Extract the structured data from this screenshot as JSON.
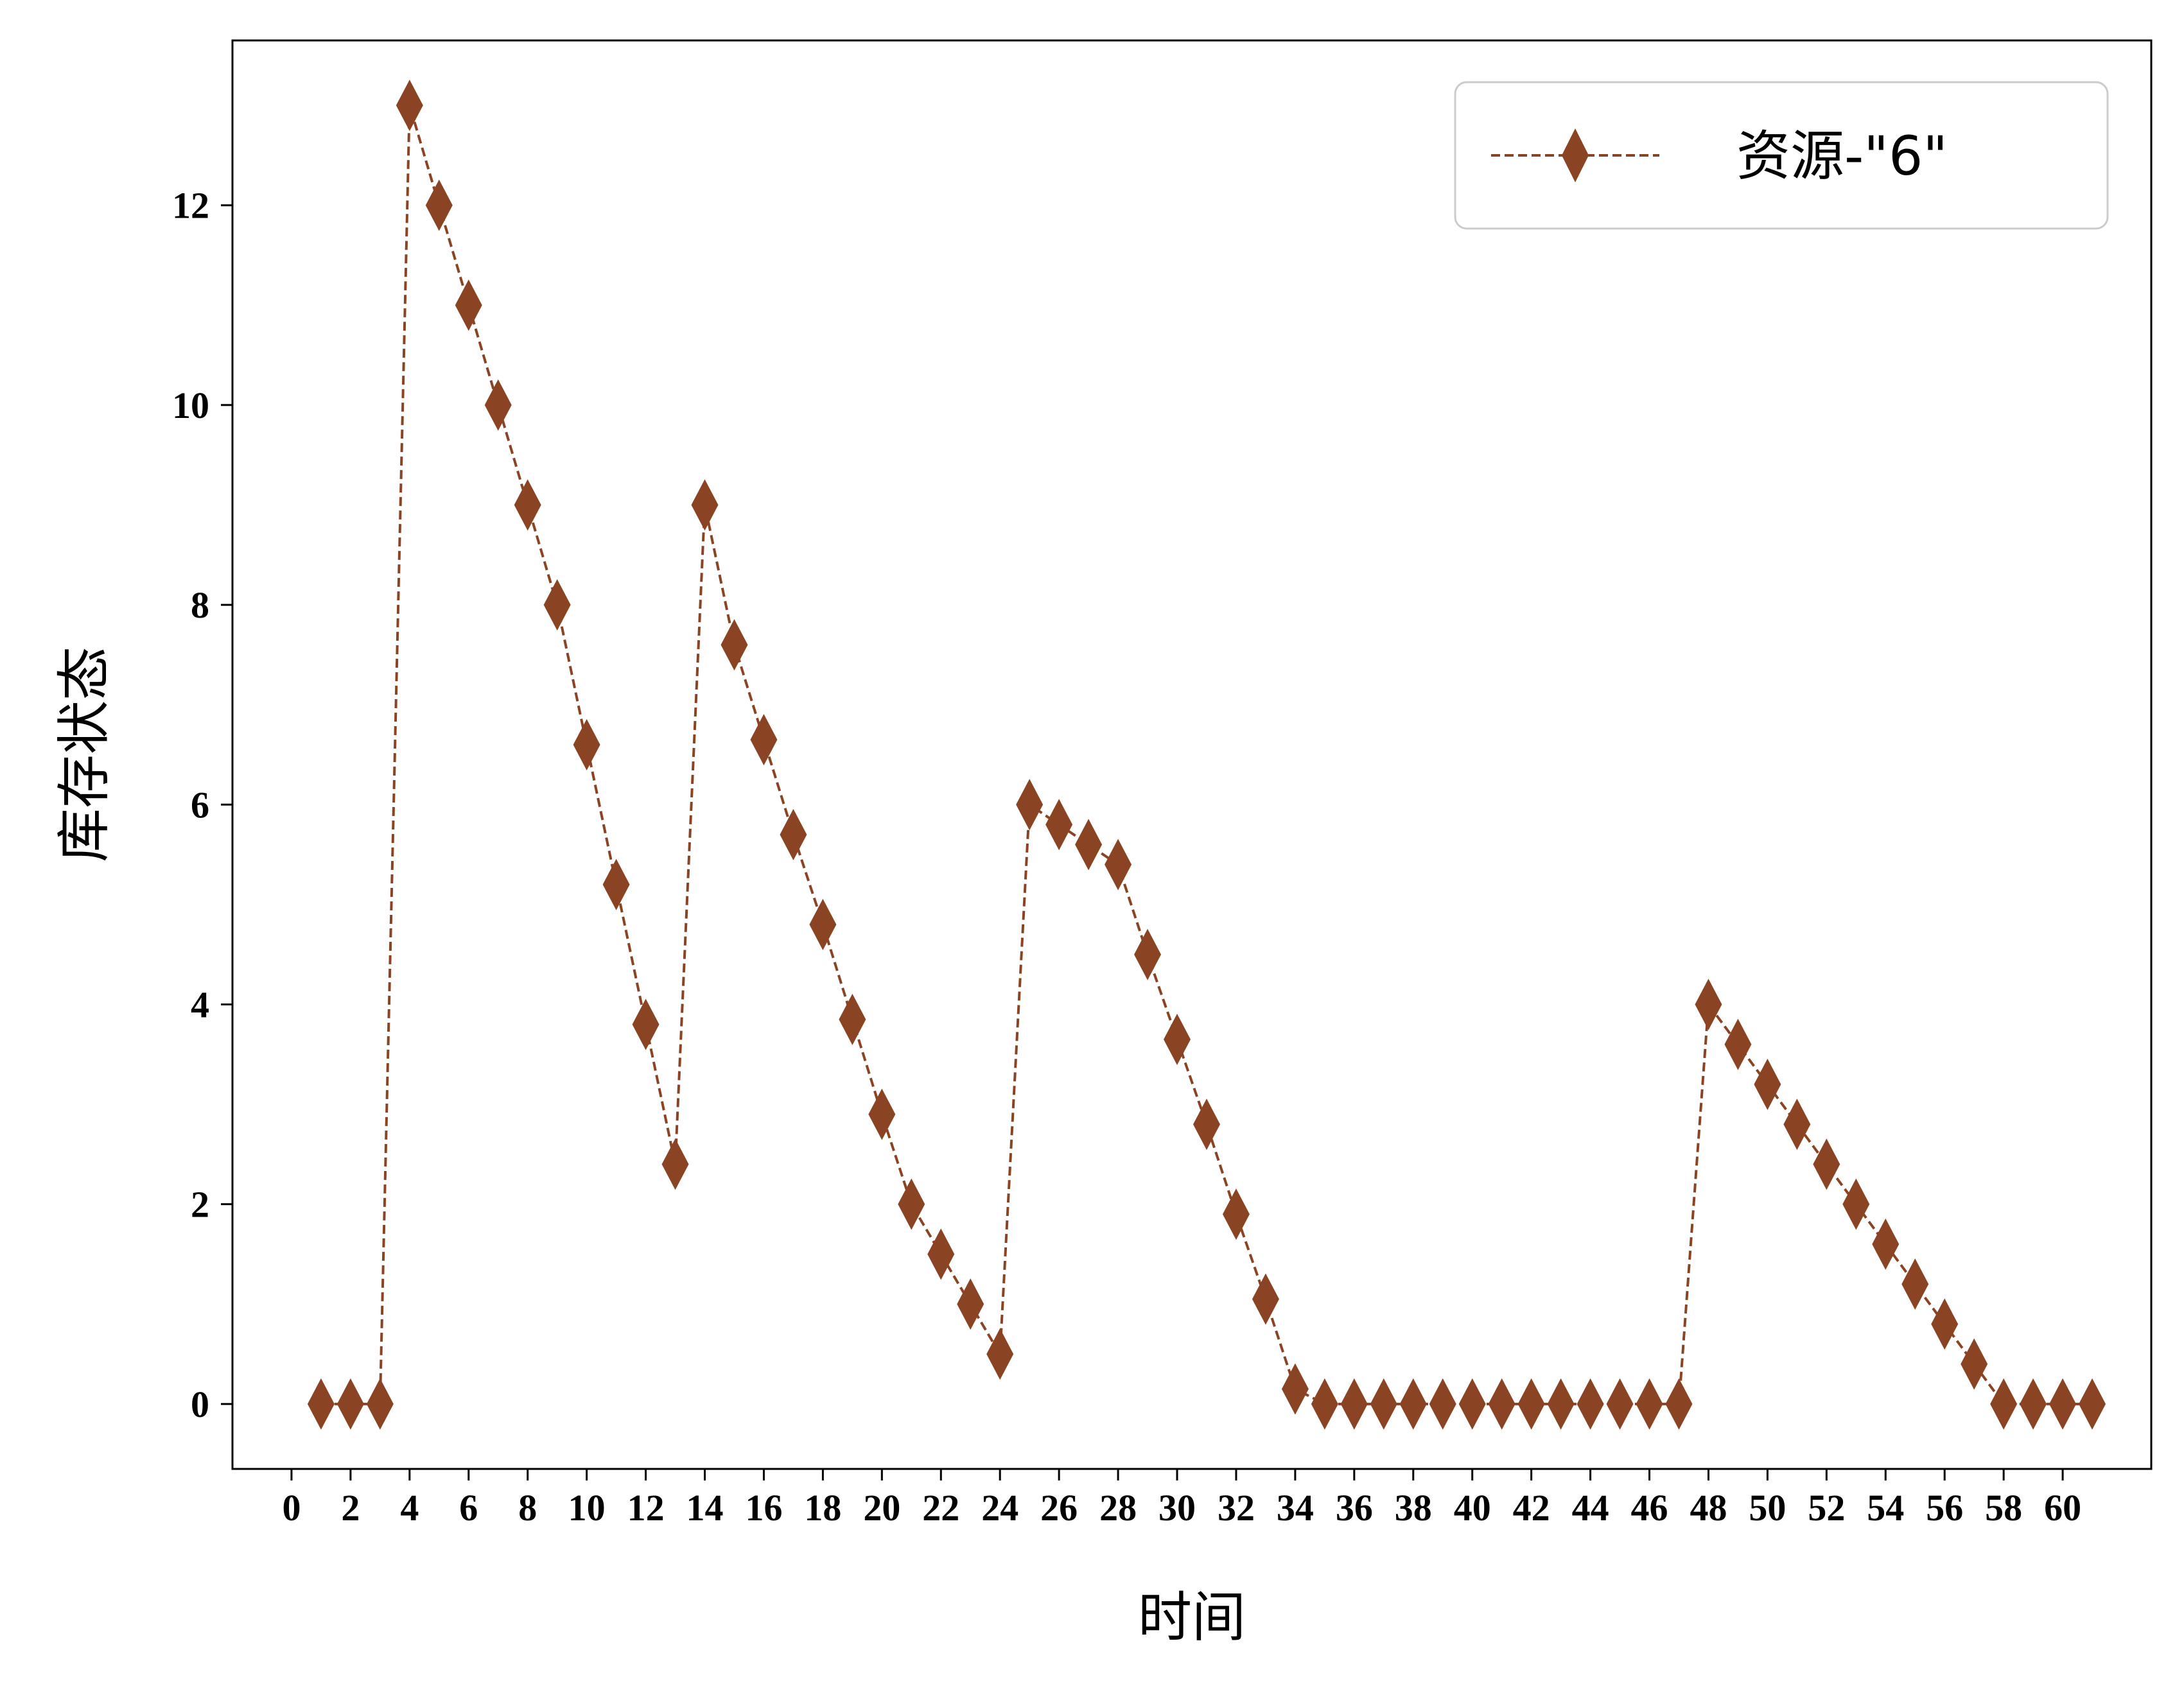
{
  "chart_data": {
    "type": "line",
    "title": "",
    "xlabel": "时间",
    "ylabel": "库存状态",
    "xlim": [
      -2,
      63
    ],
    "ylim": [
      -0.65,
      13.65
    ],
    "xticks": [
      0,
      2,
      4,
      6,
      8,
      10,
      12,
      14,
      16,
      18,
      20,
      22,
      24,
      26,
      28,
      30,
      32,
      34,
      36,
      38,
      40,
      42,
      44,
      46,
      48,
      50,
      52,
      54,
      56,
      58,
      60
    ],
    "yticks": [
      0,
      2,
      4,
      6,
      8,
      10,
      12
    ],
    "grid": false,
    "legend_position": "top-right",
    "series": [
      {
        "name": "资源-\"6\"",
        "color": "#8B4423",
        "line_style": "dashed",
        "marker": "diamond",
        "x": [
          1,
          2,
          3,
          4,
          5,
          6,
          7,
          8,
          9,
          10,
          11,
          12,
          13,
          14,
          15,
          16,
          17,
          18,
          19,
          20,
          21,
          22,
          23,
          24,
          25,
          26,
          27,
          28,
          29,
          30,
          31,
          32,
          33,
          34,
          35,
          36,
          37,
          38,
          39,
          40,
          41,
          42,
          43,
          44,
          45,
          46,
          47,
          48,
          49,
          50,
          51,
          52,
          53,
          54,
          55,
          56,
          57,
          58,
          59,
          60,
          61
        ],
        "y": [
          0,
          0,
          0,
          13,
          12,
          11,
          10,
          9,
          8,
          6.6,
          5.2,
          3.8,
          2.4,
          9,
          7.6,
          6.65,
          5.7,
          4.8,
          3.85,
          2.9,
          2.0,
          1.5,
          1.0,
          0.5,
          6,
          5.8,
          5.6,
          5.4,
          4.5,
          3.65,
          2.8,
          1.9,
          1.05,
          0.15,
          0,
          0,
          0,
          0,
          0,
          0,
          0,
          0,
          0,
          0,
          0,
          0,
          0,
          4,
          3.6,
          3.2,
          2.8,
          2.4,
          2.0,
          1.6,
          1.2,
          0.8,
          0.4,
          0,
          0,
          0,
          0
        ]
      }
    ]
  }
}
